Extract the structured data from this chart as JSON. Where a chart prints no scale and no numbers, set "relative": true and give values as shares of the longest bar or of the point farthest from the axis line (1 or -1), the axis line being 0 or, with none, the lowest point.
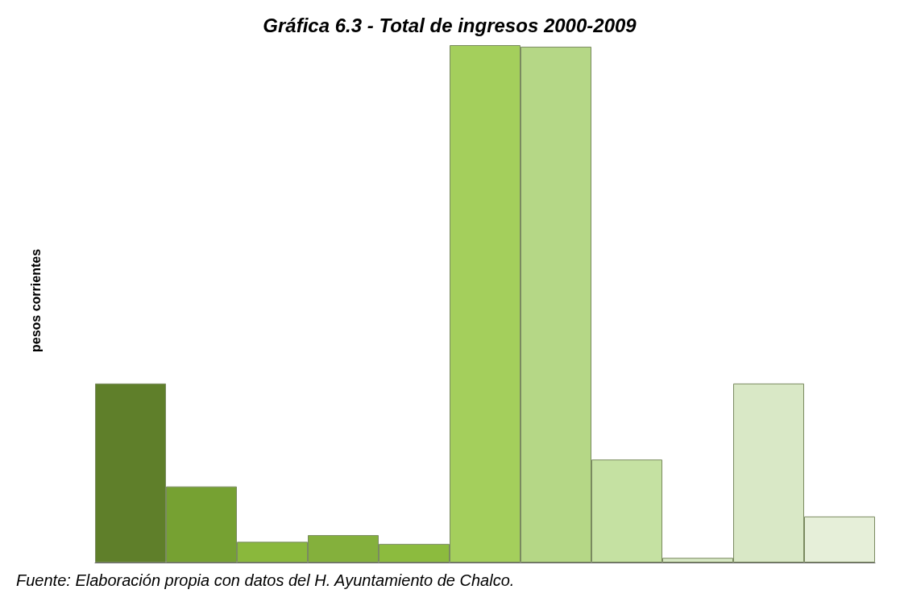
{
  "chart_data": {
    "type": "bar",
    "title": "Gráfica 6.3 - Total de ingresos 2000-2009",
    "ylabel": "pesos corrientes",
    "categories": [
      null,
      null,
      null,
      null,
      null,
      null,
      null,
      null,
      null,
      null,
      null
    ],
    "values": [
      0.346,
      0.147,
      0.04,
      0.053,
      0.036,
      1,
      0.997,
      0.199,
      0.009,
      0.346,
      0.089
    ],
    "colors": [
      "#5f7f2a",
      "#76a132",
      "#8ab83c",
      "#84b03c",
      "#8cbb3e",
      "#a4cf5c",
      "#b5d786",
      "#c5e1a2",
      "#d7e8c4",
      "#d9e8c6",
      "#e6efd9"
    ],
    "relative": true,
    "annotations": [
      "Fuente: Elaboración propia con datos del H. Ayuntamiento de Chalco."
    ]
  }
}
